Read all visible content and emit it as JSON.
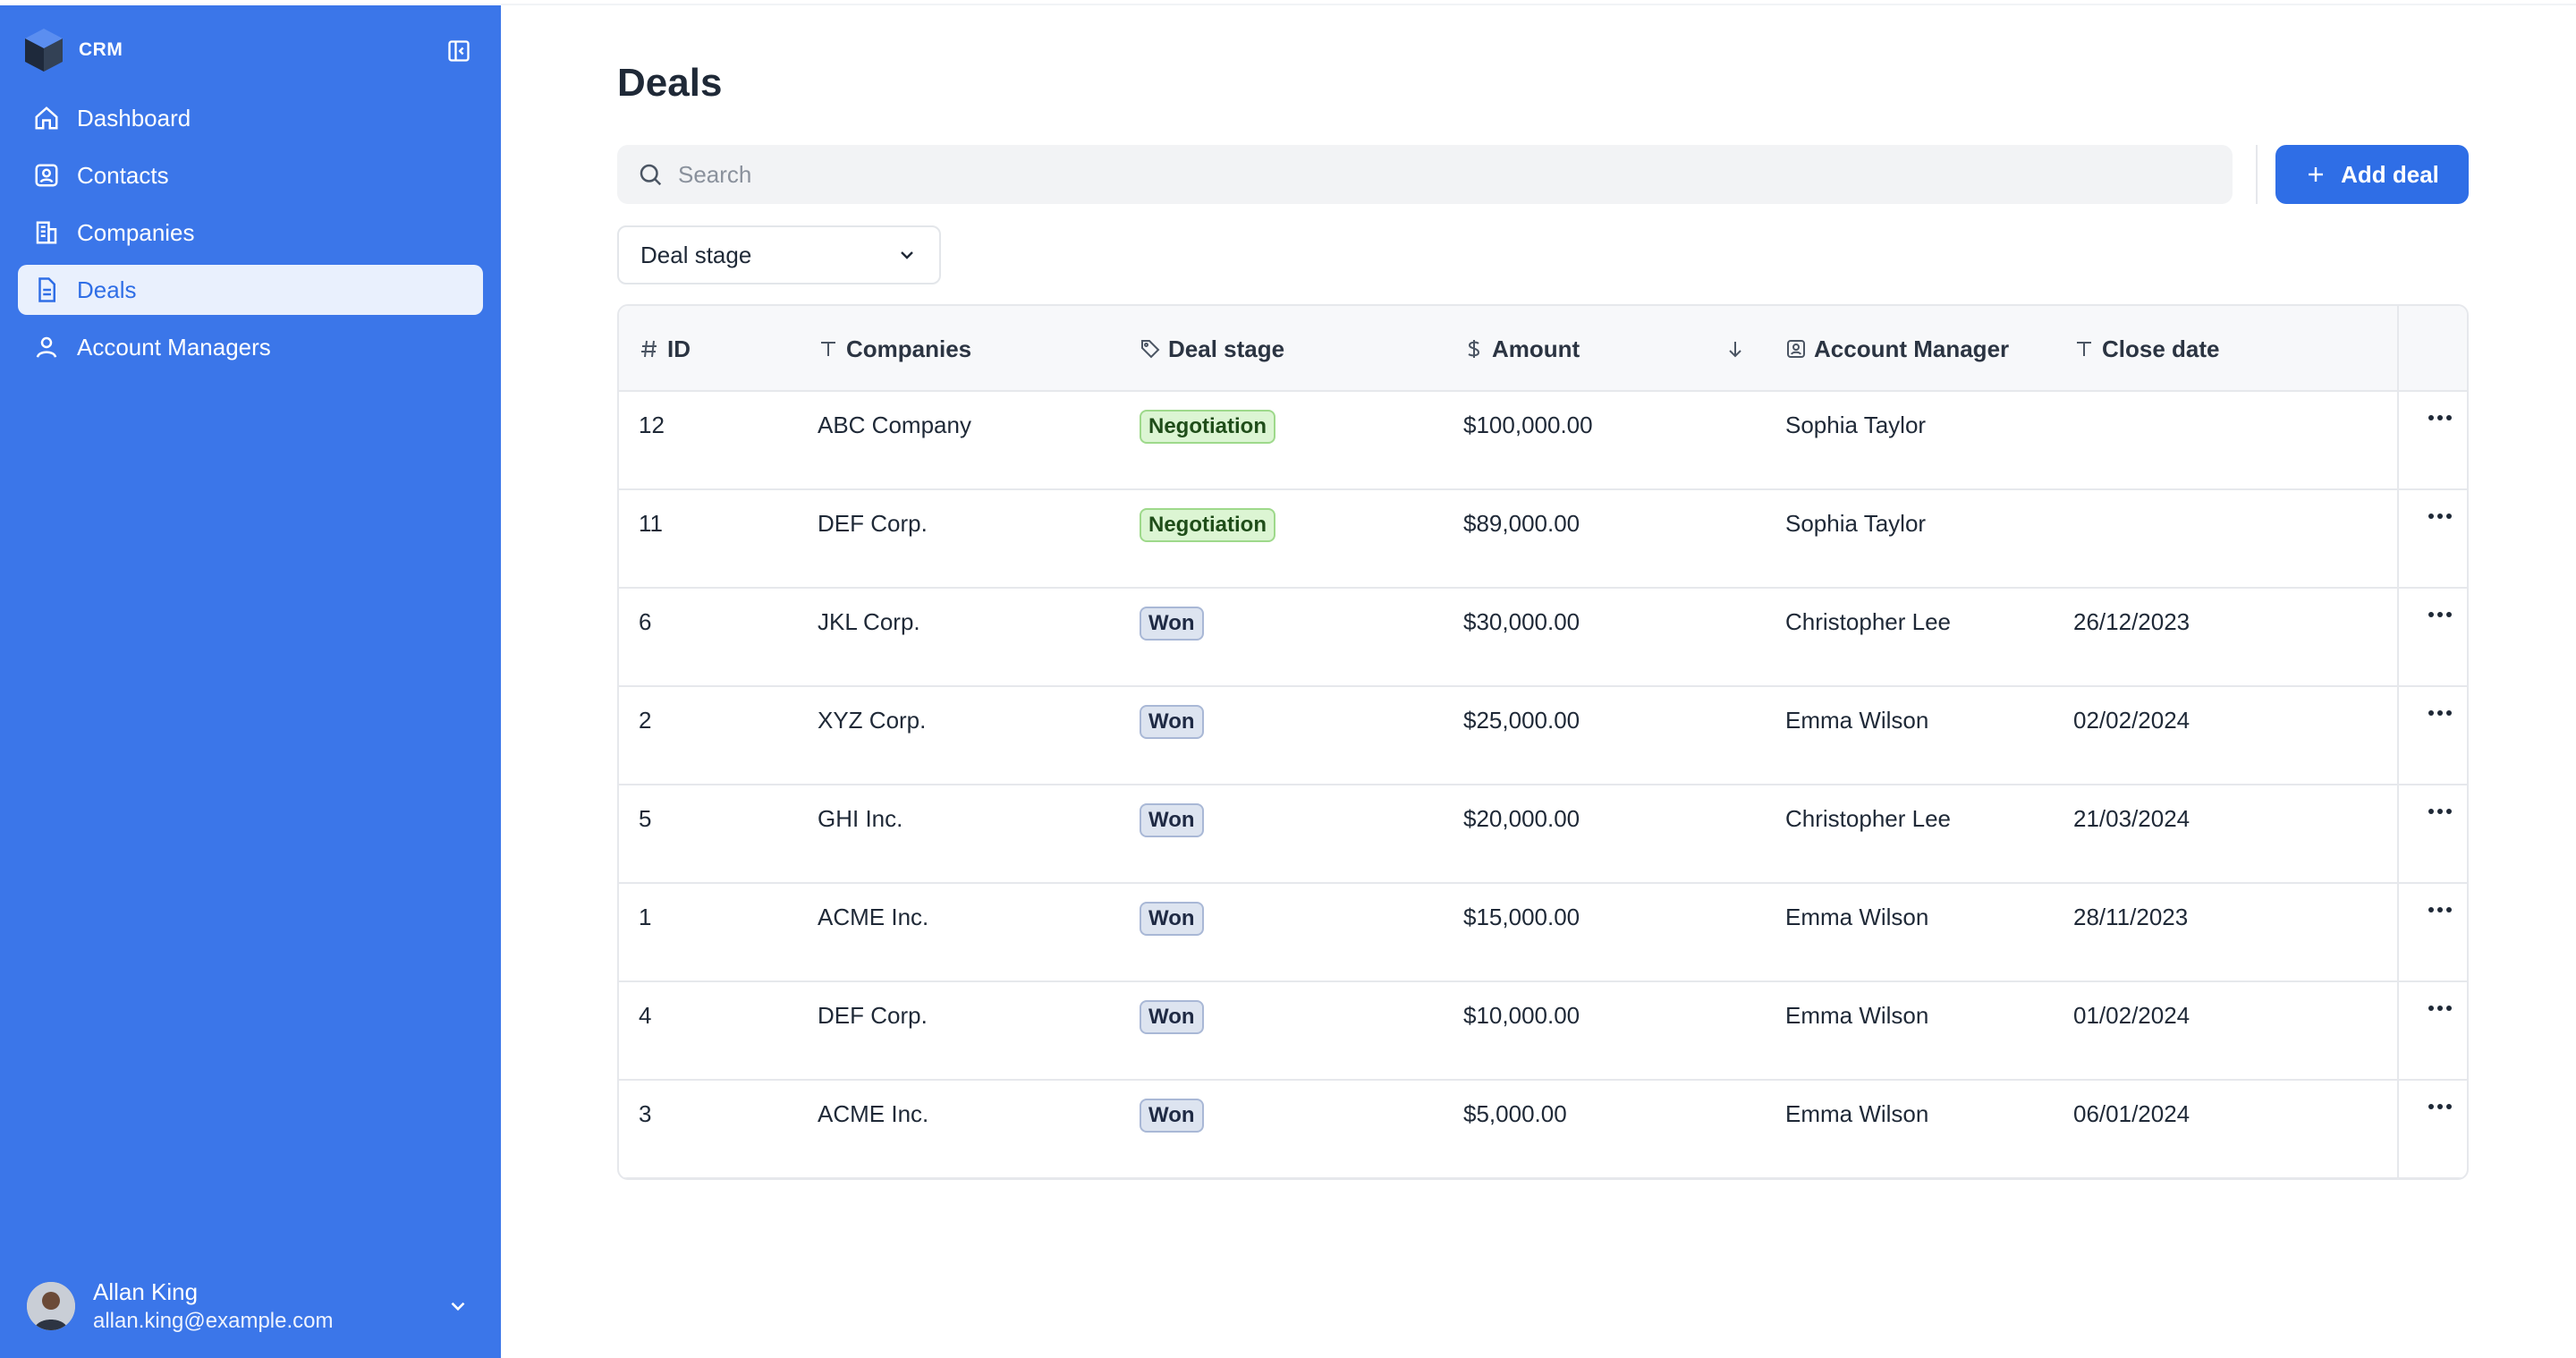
{
  "sidebar": {
    "brand": "CRM",
    "nav": [
      {
        "label": "Dashboard",
        "icon": "home-icon"
      },
      {
        "label": "Contacts",
        "icon": "contact-icon"
      },
      {
        "label": "Companies",
        "icon": "building-icon"
      },
      {
        "label": "Deals",
        "icon": "document-icon",
        "active": true
      },
      {
        "label": "Account Managers",
        "icon": "user-icon"
      }
    ],
    "user": {
      "name": "Allan King",
      "email": "allan.king@example.com"
    }
  },
  "main": {
    "title": "Deals",
    "search_placeholder": "Search",
    "add_label": "Add deal",
    "filter_label": "Deal stage",
    "columns": {
      "id": "ID",
      "company": "Companies",
      "stage": "Deal stage",
      "amount": "Amount",
      "manager": "Account Manager",
      "close": "Close date"
    },
    "rows": [
      {
        "id": "12",
        "company": "ABC Company",
        "stage": "Negotiation",
        "amount": "$100,000.00",
        "manager": "Sophia Taylor",
        "close": ""
      },
      {
        "id": "11",
        "company": "DEF Corp.",
        "stage": "Negotiation",
        "amount": "$89,000.00",
        "manager": "Sophia Taylor",
        "close": ""
      },
      {
        "id": "6",
        "company": "JKL Corp.",
        "stage": "Won",
        "amount": "$30,000.00",
        "manager": "Christopher Lee",
        "close": "26/12/2023"
      },
      {
        "id": "2",
        "company": "XYZ Corp.",
        "stage": "Won",
        "amount": "$25,000.00",
        "manager": "Emma Wilson",
        "close": "02/02/2024"
      },
      {
        "id": "5",
        "company": "GHI Inc.",
        "stage": "Won",
        "amount": "$20,000.00",
        "manager": "Christopher Lee",
        "close": "21/03/2024"
      },
      {
        "id": "1",
        "company": "ACME Inc.",
        "stage": "Won",
        "amount": "$15,000.00",
        "manager": "Emma Wilson",
        "close": "28/11/2023"
      },
      {
        "id": "4",
        "company": "DEF Corp.",
        "stage": "Won",
        "amount": "$10,000.00",
        "manager": "Emma Wilson",
        "close": "01/02/2024"
      },
      {
        "id": "3",
        "company": "ACME Inc.",
        "stage": "Won",
        "amount": "$5,000.00",
        "manager": "Emma Wilson",
        "close": "06/01/2024"
      }
    ]
  },
  "colors": {
    "sidebar": "#3b76e9",
    "accent": "#2f6ee6",
    "negotiation": "#dcf5d3",
    "won": "#dde4f0"
  }
}
